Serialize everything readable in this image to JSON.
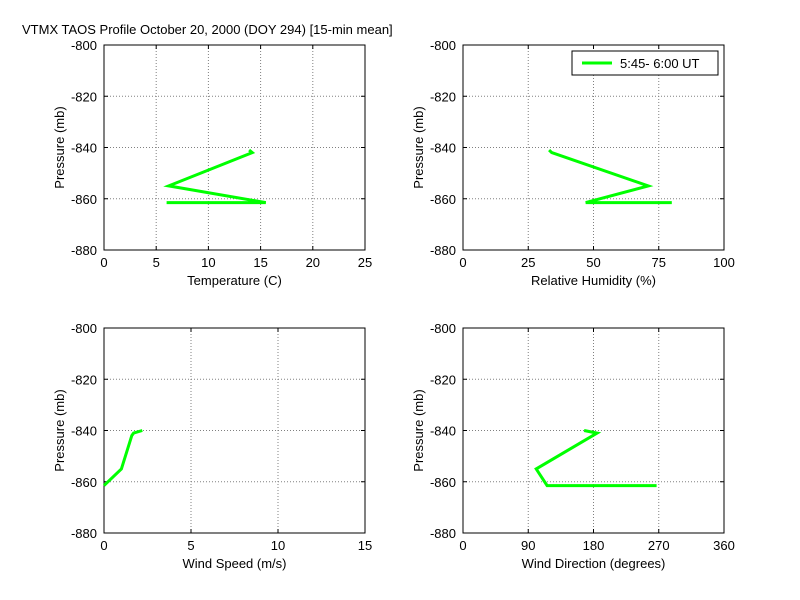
{
  "title": "VTMX TAOS Profile   October 20, 2000 (DOY 294) [15-min mean]",
  "colors": {
    "series": "#00ff00",
    "grid": "#808080",
    "axis": "#000000"
  },
  "chart_data": [
    {
      "type": "line",
      "xlabel": "Temperature (C)",
      "ylabel": "Pressure (mb)",
      "xlim": [
        0,
        25
      ],
      "ylim": [
        -880,
        -800
      ],
      "xticks": [
        "0",
        "5",
        "10",
        "15",
        "20",
        "25"
      ],
      "yticks": [
        "-880",
        "-860",
        "-840",
        "-820",
        "-800"
      ],
      "grid": true,
      "series": [
        {
          "x": [
            13.9,
            14.2,
            6.2,
            15.5,
            6.0
          ],
          "y": [
            -841,
            -842,
            -855,
            -861.5,
            -861.5
          ]
        }
      ]
    },
    {
      "type": "line",
      "xlabel": "Relative Humidity (%)",
      "ylabel": "Pressure (mb)",
      "xlim": [
        0,
        100
      ],
      "ylim": [
        -880,
        -800
      ],
      "xticks": [
        "0",
        "25",
        "50",
        "75",
        "100"
      ],
      "yticks": [
        "-880",
        "-860",
        "-840",
        "-820",
        "-800"
      ],
      "grid": true,
      "legend": {
        "position": "top-right",
        "entries": [
          "5:45- 6:00 UT"
        ]
      },
      "series": [
        {
          "name": "5:45- 6:00 UT",
          "x": [
            33,
            34,
            71,
            47,
            80
          ],
          "y": [
            -841,
            -842,
            -855,
            -861.5,
            -861.5
          ]
        }
      ]
    },
    {
      "type": "line",
      "xlabel": "Wind Speed (m/s)",
      "ylabel": "Pressure (mb)",
      "xlim": [
        0,
        15
      ],
      "ylim": [
        -880,
        -800
      ],
      "xticks": [
        "0",
        "5",
        "10",
        "15"
      ],
      "yticks": [
        "-880",
        "-860",
        "-840",
        "-820",
        "-800"
      ],
      "grid": true,
      "series": [
        {
          "x": [
            2.2,
            1.7,
            1.6,
            1.0,
            0.0
          ],
          "y": [
            -840,
            -841,
            -842,
            -855,
            -861.5
          ]
        }
      ]
    },
    {
      "type": "line",
      "xlabel": "Wind Direction (degrees)",
      "ylabel": "Pressure (mb)",
      "xlim": [
        0,
        360
      ],
      "ylim": [
        -880,
        -800
      ],
      "xticks": [
        "0",
        "90",
        "180",
        "270",
        "360"
      ],
      "yticks": [
        "-880",
        "-860",
        "-840",
        "-820",
        "-800"
      ],
      "grid": true,
      "series": [
        {
          "x": [
            167,
            185,
            101,
            116,
            267
          ],
          "y": [
            -840,
            -841,
            -855,
            -861.5,
            -861.5
          ]
        }
      ]
    }
  ]
}
